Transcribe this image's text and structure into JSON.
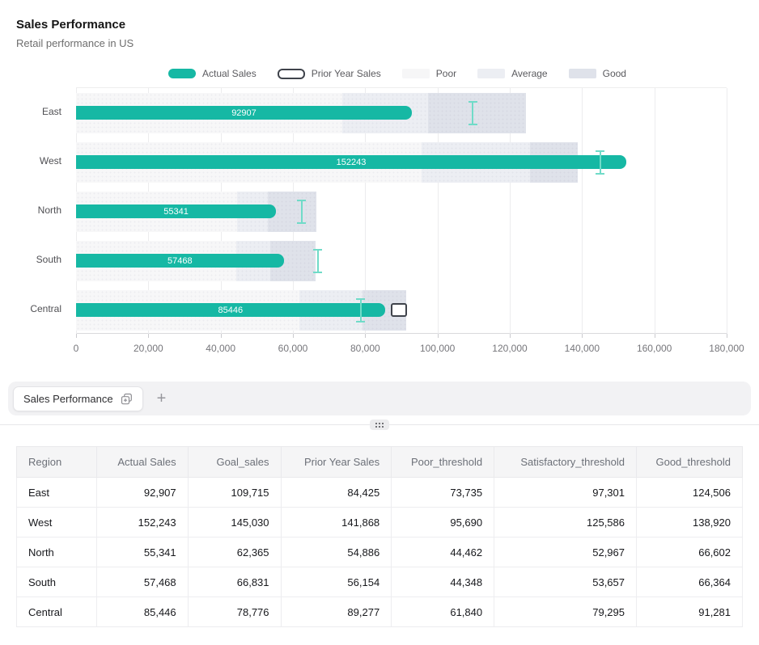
{
  "header": {
    "title": "Sales Performance",
    "subtitle": "Retail performance in US"
  },
  "legend": {
    "items": [
      {
        "label": "Actual Sales",
        "swatch_color": "#16b8a4"
      },
      {
        "label": "Prior Year Sales",
        "swatch_color": "outline #3f434b"
      },
      {
        "label": "Poor",
        "swatch_color": "#f6f6f7"
      },
      {
        "label": "Average",
        "swatch_color": "#eceef3"
      },
      {
        "label": "Good",
        "swatch_color": "#dfe2ea"
      }
    ]
  },
  "colors": {
    "accent": "#16b8a4",
    "goal_marker": "#70dbc8",
    "poor_band": "#f7f7f8",
    "average_band": "#eceef3",
    "good_band": "#dfe2ea",
    "prior_outline": "#3f434b"
  },
  "chart_data": {
    "type": "bar",
    "subtype": "bullet",
    "title": "Sales Performance",
    "subtitle": "Retail performance in US",
    "orientation": "horizontal",
    "categories": [
      "East",
      "West",
      "North",
      "South",
      "Central"
    ],
    "series": [
      {
        "name": "Actual Sales",
        "values": [
          92907,
          152243,
          55341,
          57468,
          85446
        ]
      },
      {
        "name": "Goal_sales",
        "values": [
          109715,
          145030,
          62365,
          66831,
          78776
        ]
      },
      {
        "name": "Prior Year Sales",
        "values": [
          84425,
          141868,
          54886,
          56154,
          89277
        ]
      },
      {
        "name": "Poor_threshold",
        "values": [
          73735,
          95690,
          44462,
          44348,
          61840
        ]
      },
      {
        "name": "Satisfactory_threshold",
        "values": [
          97301,
          125586,
          52967,
          53657,
          79295
        ]
      },
      {
        "name": "Good_threshold",
        "values": [
          124506,
          138920,
          66602,
          66364,
          91281
        ]
      }
    ],
    "bar_labels": [
      "92907",
      "152243",
      "55341",
      "57468",
      "85446"
    ],
    "xlim": [
      0,
      180000
    ],
    "x_tick_values": [
      0,
      20000,
      40000,
      60000,
      80000,
      100000,
      120000,
      140000,
      160000,
      180000
    ],
    "x_tick_labels": [
      "0",
      "20,000",
      "40,000",
      "60,000",
      "80,000",
      "100,000",
      "120,000",
      "140,000",
      "160,000",
      "180,000"
    ],
    "legend_position": "top",
    "grid": true
  },
  "tabs": {
    "active_label": "Sales Performance",
    "add_label": "+"
  },
  "table": {
    "columns": [
      "Region",
      "Actual Sales",
      "Goal_sales",
      "Prior Year Sales",
      "Poor_threshold",
      "Satisfactory_threshold",
      "Good_threshold"
    ],
    "rows": [
      [
        "East",
        "92,907",
        "109,715",
        "84,425",
        "73,735",
        "97,301",
        "124,506"
      ],
      [
        "West",
        "152,243",
        "145,030",
        "141,868",
        "95,690",
        "125,586",
        "138,920"
      ],
      [
        "North",
        "55,341",
        "62,365",
        "54,886",
        "44,462",
        "52,967",
        "66,602"
      ],
      [
        "South",
        "57,468",
        "66,831",
        "56,154",
        "44,348",
        "53,657",
        "66,364"
      ],
      [
        "Central",
        "85,446",
        "78,776",
        "89,277",
        "61,840",
        "79,295",
        "91,281"
      ]
    ]
  }
}
